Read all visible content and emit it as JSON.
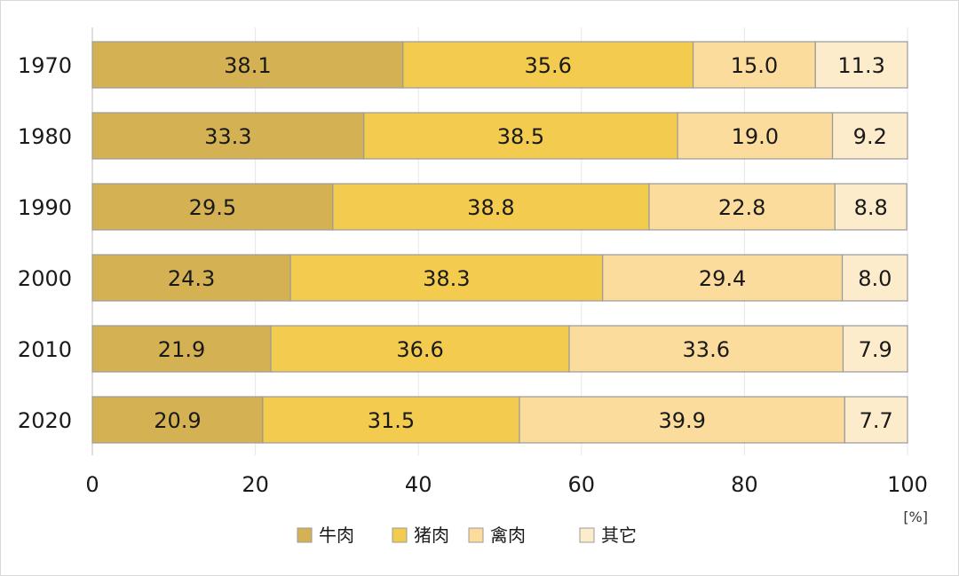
{
  "chart_data": {
    "type": "bar",
    "orientation": "horizontal",
    "stacked": true,
    "percent": true,
    "categories": [
      "1970",
      "1980",
      "1990",
      "2000",
      "2010",
      "2020"
    ],
    "series": [
      {
        "name": "牛肉",
        "color": "#d4b254",
        "values": [
          38.1,
          33.3,
          29.5,
          24.3,
          21.9,
          20.9
        ]
      },
      {
        "name": "猪肉",
        "color": "#f3cc4f",
        "values": [
          35.6,
          38.5,
          38.8,
          38.3,
          36.6,
          31.5
        ]
      },
      {
        "name": "禽肉",
        "color": "#fbdc9c",
        "values": [
          15.0,
          19.0,
          22.8,
          29.4,
          33.6,
          39.9
        ]
      },
      {
        "name": "其它",
        "color": "#fdeccb",
        "values": [
          11.3,
          9.2,
          8.8,
          8.0,
          7.9,
          7.7
        ]
      }
    ],
    "xlim": [
      0,
      100
    ],
    "xticks": [
      "0",
      "20",
      "40",
      "60",
      "80",
      "100"
    ],
    "unit": "[%]",
    "grid": true,
    "legend_position": "bottom"
  }
}
